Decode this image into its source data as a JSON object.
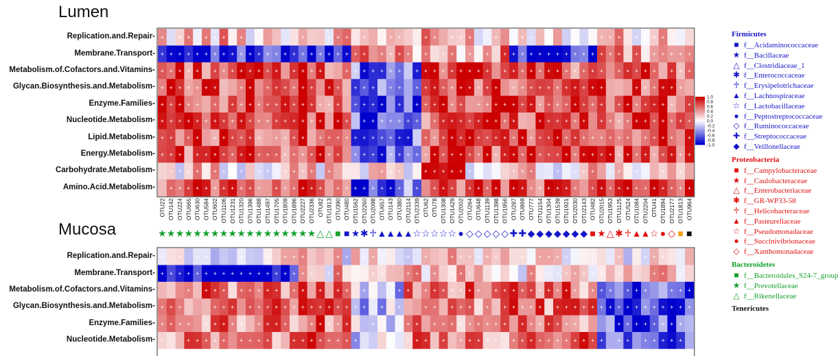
{
  "panels": [
    {
      "title": "Lumen"
    },
    {
      "title": "Mucosa"
    }
  ],
  "chart_data": {
    "type": "heatmap",
    "rows": [
      "Replication.and.Repair",
      "Membrane.Transport",
      "Metabolism.of.Cofactors.and.Vitamins",
      "Glycan.Biosynthesis.and.Metabolism",
      "Enzyme.Families",
      "Nucleotide.Metabolism",
      "Lipid.Metabolism",
      "Energy.Metabolism",
      "Carbohydrate.Metabolism",
      "Amino.Acid.Metabolism"
    ],
    "mucosa_visible_rows": [
      "Replication.and.Repair",
      "Membrane.Transport",
      "Metabolism.of.Cofactors.and.Vitamins",
      "Glycan.Biosynthesis.and.Metabolism",
      "Enzyme.Families",
      "Nucleotide.Metabolism"
    ],
    "columns": [
      "OTU22",
      "OTU142",
      "OTU224",
      "OTU665",
      "OTU630",
      "OTU584",
      "OTU602",
      "OTU1106",
      "OTU1231",
      "OTU1320",
      "OTU1396",
      "OTU1488",
      "OTU1497",
      "OTU1705",
      "OTU1809",
      "OTU1896",
      "OTU2227",
      "OTU2336",
      "OTU82",
      "OTU1913",
      "OTU390",
      "OTU480",
      "OTU1562",
      "OTU2260",
      "OTU2098",
      "OTU657",
      "OTU143",
      "OTU380",
      "OTU2114",
      "OTU2339",
      "OTU62",
      "OTU78",
      "OTU1308",
      "OTU1429",
      "OTU2002",
      "OTU264",
      "OTU648",
      "OTU1139",
      "OTU1398",
      "OTU1956",
      "OTU287",
      "OTU869",
      "OTU777",
      "OTU1154",
      "OTU1304",
      "OTU1539",
      "OTU1921",
      "OTU2030",
      "OTU2143",
      "OTU482",
      "OTU2015",
      "OTU1953",
      "OTU1125",
      "OTU524",
      "OTU1084",
      "OTU2204",
      "OTU41",
      "OTU1894",
      "OTU2177",
      "OTU1813",
      "OTU964"
    ],
    "column_taxa": [
      "f__Prevotellaceae",
      "f__Prevotellaceae",
      "f__Prevotellaceae",
      "f__Prevotellaceae",
      "f__Prevotellaceae",
      "f__Prevotellaceae",
      "f__Prevotellaceae",
      "f__Prevotellaceae",
      "f__Prevotellaceae",
      "f__Prevotellaceae",
      "f__Prevotellaceae",
      "f__Prevotellaceae",
      "f__Prevotellaceae",
      "f__Prevotellaceae",
      "f__Prevotellaceae",
      "f__Prevotellaceae",
      "f__Prevotellaceae",
      "f__Prevotellaceae",
      "f__Rikenellaceae",
      "f__Rikenellaceae",
      "f__Bacteroidales_S24-7_group",
      "f__Acidaminococcaceae",
      "f__Bacillaceae",
      "f__Enterococcaceae",
      "f__Erysipelotrichaceae",
      "f__Lachnospiraceae",
      "f__Lachnospiraceae",
      "f__Lachnospiraceae",
      "f__Lachnospiraceae",
      "f__Lactobacillaceae",
      "f__Lactobacillaceae",
      "f__Lactobacillaceae",
      "f__Lactobacillaceae",
      "f__Lactobacillaceae",
      "f__Peptostreptococcaceae",
      "f__Ruminococcaceae",
      "f__Ruminococcaceae",
      "f__Ruminococcaceae",
      "f__Ruminococcaceae",
      "f__Ruminococcaceae",
      "f__Streptococcaceae",
      "f__Streptococcaceae",
      "f__Veillonellaceae",
      "f__Veillonellaceae",
      "f__Veillonellaceae",
      "f__Veillonellaceae",
      "f__Veillonellaceae",
      "f__Veillonellaceae",
      "f__Veillonellaceae",
      "f__Campylobacteraceae",
      "f__Caulobacteraceae",
      "f__Enterobacteriaceae",
      "f__GR-WP33-58",
      "f__Helicobacteraceae",
      "f__Pasteurellaceae",
      "f__Pasteurellaceae",
      "f__Pseudomonadaceae",
      "f__Succinivibrionaceae",
      "f__Xanthomonadaceae",
      "Tenericutes",
      "Tenericutes"
    ],
    "colorbar": {
      "ticks": [
        "1.0",
        "0.8",
        "0.6",
        "0.4",
        "0.2",
        "0.0",
        "-0.2",
        "-0.4",
        "-0.6",
        "-0.8",
        "-1.0"
      ],
      "min": -1.0,
      "max": 1.0,
      "low_color": "#0000cc",
      "mid_color": "#ffffff",
      "high_color": "#cc0000"
    },
    "values": "Correlation coefficients per cell; '+' marks significant cells. Values estimated from colour."
  },
  "legend": {
    "groups": [
      {
        "name": "Firmicutes",
        "color": "#1515c8",
        "items": [
          {
            "label": "f__Acidaminococcaceae",
            "symbol": "■"
          },
          {
            "label": "f__Bacillaceae",
            "symbol": "★"
          },
          {
            "label": "f__Clostridiaceae_1",
            "symbol": "△"
          },
          {
            "label": "f__Enterococcaceae",
            "symbol": "✱"
          },
          {
            "label": "f__Erysipelotrichaceae",
            "symbol": "♱"
          },
          {
            "label": "f__Lachnospiraceae",
            "symbol": "▲"
          },
          {
            "label": "f__Lactobacillaceae",
            "symbol": "☆"
          },
          {
            "label": "f__Peptostreptococcaceae",
            "symbol": "●"
          },
          {
            "label": "f__Ruminococcaceae",
            "symbol": "◇"
          },
          {
            "label": "f__Streptococcaceae",
            "symbol": "✚"
          },
          {
            "label": "f__Veillonellaceae",
            "symbol": "◆"
          }
        ]
      },
      {
        "name": "Proteobacteria",
        "color": "#e01010",
        "items": [
          {
            "label": "f__Campylobacteraceae",
            "symbol": "■"
          },
          {
            "label": "f__Caulobacteraceae",
            "symbol": "★"
          },
          {
            "label": "f__Enterobacteriaceae",
            "symbol": "△"
          },
          {
            "label": "f__GR-WP33-58",
            "symbol": "✱"
          },
          {
            "label": "f__Helicobacteraceae",
            "symbol": "♱"
          },
          {
            "label": "f__Pasteurellaceae",
            "symbol": "▲"
          },
          {
            "label": "f__Pseudomonadaceae",
            "symbol": "☆"
          },
          {
            "label": "f__Succinivibrionaceae",
            "symbol": "●"
          },
          {
            "label": "f__Xanthomonadaceae",
            "symbol": "◇"
          }
        ]
      },
      {
        "name": "Bacteroidetes",
        "color": "#14a02c",
        "items": [
          {
            "label": "f__Bacteroidales_S24-7_group",
            "symbol": "■"
          },
          {
            "label": "f__Prevotellaceae",
            "symbol": "★"
          },
          {
            "label": "f__Rikenellaceae",
            "symbol": "△"
          }
        ]
      },
      {
        "name": "Tenericutes",
        "color": "#111111",
        "items": []
      }
    ]
  }
}
